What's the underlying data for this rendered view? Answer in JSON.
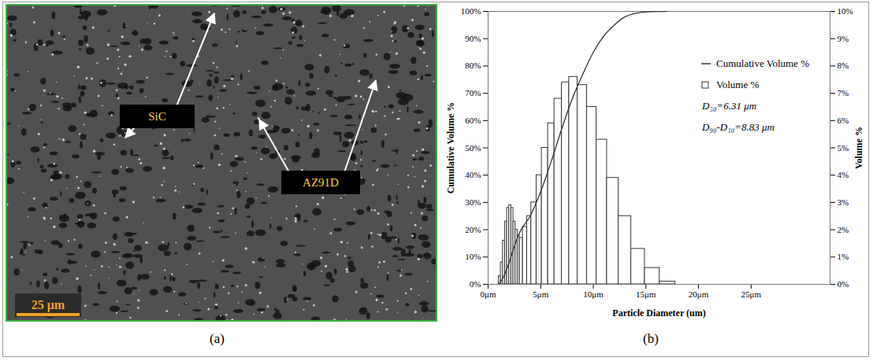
{
  "panels": [
    {
      "label": "(a)",
      "type": "micrograph",
      "annotations": [
        "SiC",
        "AZ91D"
      ],
      "scale_bar": "25 μm"
    },
    {
      "label": "(b)"
    }
  ],
  "chart_data": {
    "type": "histogram",
    "x_label": "Particle Diameter (um)",
    "y_label": "Cumulative Volume %",
    "y2_label": "Volume %",
    "bins": [
      1.0,
      1.2,
      1.4,
      1.6,
      1.8,
      2.0,
      2.2,
      2.4,
      2.6,
      2.8,
      3.0,
      3.3,
      3.7,
      4.1,
      4.6,
      5.1,
      5.7,
      6.3,
      7.0,
      7.7,
      8.5,
      9.4,
      10.3,
      11.3,
      12.4,
      13.6,
      14.9,
      16.3,
      17.8
    ],
    "series": [
      {
        "name": "Volume %",
        "type": "bar",
        "axis": "y2",
        "color": "#333333",
        "marker": "square",
        "values": [
          0.3,
          0.8,
          1.6,
          2.3,
          2.8,
          2.9,
          2.8,
          2.3,
          2.0,
          1.8,
          1.7,
          2.1,
          2.5,
          3.0,
          4.0,
          5.0,
          5.9,
          6.8,
          7.4,
          7.6,
          7.3,
          6.5,
          5.3,
          3.9,
          2.5,
          1.3,
          0.6,
          0.1
        ]
      },
      {
        "name": "Cumulative Volume %",
        "type": "line",
        "color": "#333333",
        "line_style": "solid",
        "x": [
          1,
          1.5,
          2,
          2.5,
          3,
          4,
          5,
          6,
          7,
          8,
          9,
          10,
          11,
          12,
          13,
          14,
          15,
          16,
          17
        ],
        "values": [
          0,
          3,
          8,
          14,
          19,
          25,
          34,
          45,
          57,
          68,
          77,
          85,
          91,
          95,
          98,
          99.3,
          99.8,
          100,
          100
        ]
      }
    ],
    "annotations": [
      "D₅₀=6.31 μm",
      "D₉₀-D₁₀=8.83 μm"
    ],
    "xlim": [
      0,
      32.5
    ],
    "xticks": [
      {
        "value": 0,
        "label": "0μm"
      },
      {
        "value": 5,
        "label": "5μm"
      },
      {
        "value": 10,
        "label": "10μm"
      },
      {
        "value": 15,
        "label": "15μm"
      },
      {
        "value": 20,
        "label": "20μm"
      },
      {
        "value": 25,
        "label": "25μm"
      }
    ],
    "ylim": [
      0,
      100
    ],
    "yticks": [
      {
        "value": 0,
        "label": "0%"
      },
      {
        "value": 10,
        "label": "10%"
      },
      {
        "value": 20,
        "label": "20%"
      },
      {
        "value": 30,
        "label": "30%"
      },
      {
        "value": 40,
        "label": "40%"
      },
      {
        "value": 50,
        "label": "50%"
      },
      {
        "value": 60,
        "label": "60%"
      },
      {
        "value": 70,
        "label": "70%"
      },
      {
        "value": 80,
        "label": "80%"
      },
      {
        "value": 90,
        "label": "90%"
      },
      {
        "value": 100,
        "label": "100%"
      }
    ],
    "y2lim": [
      0,
      10
    ],
    "y2ticks": [
      {
        "value": 0,
        "label": "0%"
      },
      {
        "value": 1,
        "label": "1%"
      },
      {
        "value": 2,
        "label": "2%"
      },
      {
        "value": 3,
        "label": "3%"
      },
      {
        "value": 4,
        "label": "4%"
      },
      {
        "value": 5,
        "label": "5%"
      },
      {
        "value": 6,
        "label": "6%"
      },
      {
        "value": 7,
        "label": "7%"
      },
      {
        "value": 8,
        "label": "8%"
      },
      {
        "value": 9,
        "label": "9%"
      },
      {
        "value": 10,
        "label": "10%"
      }
    ],
    "legend": "top-right"
  }
}
